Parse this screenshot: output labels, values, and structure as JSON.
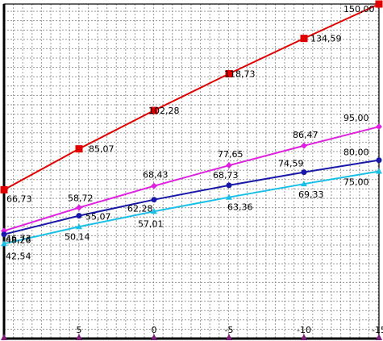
{
  "chart_data": {
    "type": "line",
    "title": "",
    "xlabel": "",
    "ylabel": "",
    "x": [
      10,
      5,
      0,
      -5,
      -10,
      -15
    ],
    "x_tick_labels": [
      "5",
      "0",
      "-5",
      "-10",
      "-15"
    ],
    "x_ticks": [
      5,
      0,
      -5,
      -10,
      -15
    ],
    "xlim": [
      10,
      -15
    ],
    "ylim": [
      0,
      150
    ],
    "grid": true,
    "series": [
      {
        "color": "#e00000",
        "marker": "square",
        "values": [
          66.73,
          85.07,
          102.28,
          118.73,
          134.59,
          150.0
        ],
        "labels": [
          "66,73",
          "85,07",
          "102,28",
          "118,73",
          "134,59",
          "150,00"
        ]
      },
      {
        "color": "#e020e0",
        "marker": "diamond",
        "values": [
          48.26,
          58.72,
          68.43,
          77.65,
          86.47,
          95.0
        ],
        "labels": [
          "48,26",
          "58,72",
          "68,43",
          "77,65",
          "86,47",
          "95,00"
        ]
      },
      {
        "color": "#1818a8",
        "marker": "circle",
        "values": [
          46.73,
          55.07,
          62.28,
          68.73,
          74.59,
          80.0
        ],
        "labels": [
          "46,73",
          "55,07",
          "62,28",
          "68,73",
          "74,59",
          "80,00"
        ]
      },
      {
        "color": "#18c0e8",
        "marker": "triangle",
        "values": [
          42.54,
          50.14,
          57.01,
          63.36,
          69.33,
          75.0
        ],
        "labels": [
          "42,54",
          "50,14",
          "57,01",
          "63,36",
          "69,33",
          "75,00"
        ]
      }
    ]
  }
}
